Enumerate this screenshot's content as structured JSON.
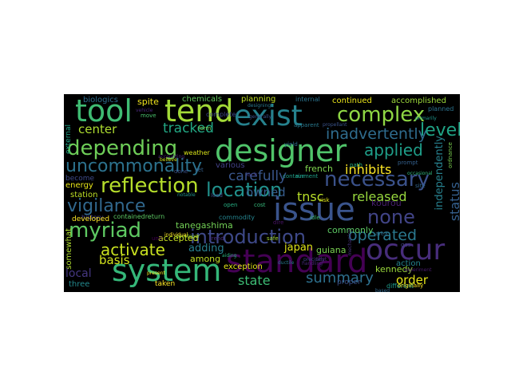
{
  "figure": {
    "background": "#000000",
    "page_background": "#ffffff"
  },
  "words": [
    {
      "text": "tool",
      "color": "#3fbc73"
    },
    {
      "text": "tend",
      "color": "#a2da37"
    },
    {
      "text": "exist",
      "color": "#26828e"
    },
    {
      "text": "complex",
      "color": "#8fd744"
    },
    {
      "text": "designer",
      "color": "#50c46a"
    },
    {
      "text": "issue",
      "color": "#3a548c"
    },
    {
      "text": "standard",
      "color": "#440154"
    },
    {
      "text": "system",
      "color": "#35b779"
    },
    {
      "text": "occur",
      "color": "#472d7b"
    },
    {
      "text": "depending",
      "color": "#6ece58"
    },
    {
      "text": "reflection",
      "color": "#b5de2b"
    },
    {
      "text": "uncommonality",
      "color": "#2c728e"
    },
    {
      "text": "necessary",
      "color": "#3b528b"
    },
    {
      "text": "location",
      "color": "#21918c"
    },
    {
      "text": "introduction",
      "color": "#3e4989"
    },
    {
      "text": "myriad",
      "color": "#5ec962"
    },
    {
      "text": "vigilance",
      "color": "#31688e"
    },
    {
      "text": "activate",
      "color": "#c8e020"
    },
    {
      "text": "none",
      "color": "#414487"
    },
    {
      "text": "operated",
      "color": "#2a788e"
    },
    {
      "text": "applied",
      "color": "#1f9e89"
    },
    {
      "text": "level",
      "color": "#20a486"
    },
    {
      "text": "inadvertently",
      "color": "#2f6c8e"
    },
    {
      "text": "tracked",
      "color": "#22a884"
    },
    {
      "text": "center",
      "color": "#addc30"
    },
    {
      "text": "carefully",
      "color": "#39568c"
    },
    {
      "text": "owned",
      "color": "#365d8d"
    },
    {
      "text": "inhibits",
      "color": "#fde725"
    },
    {
      "text": "released",
      "color": "#98d83e"
    },
    {
      "text": "tnsc",
      "color": "#b8de29"
    },
    {
      "text": "summary",
      "color": "#2d708e"
    },
    {
      "text": "state",
      "color": "#3dbc74"
    },
    {
      "text": "order",
      "color": "#e5e419"
    },
    {
      "text": "status",
      "color": "#355f8d"
    },
    {
      "text": "independently",
      "color": "#27808e"
    },
    {
      "text": "japan",
      "color": "#dde318"
    },
    {
      "text": "basis",
      "color": "#d2e21b"
    },
    {
      "text": "adding",
      "color": "#277f8e"
    },
    {
      "text": "tanegashima",
      "color": "#73d056"
    },
    {
      "text": "local",
      "color": "#453781"
    },
    {
      "text": "kourou",
      "color": "#481f70"
    },
    {
      "text": "guiana",
      "color": "#7ad151"
    },
    {
      "text": "kennedy",
      "color": "#9bd93c"
    },
    {
      "text": "french",
      "color": "#7fd34e"
    },
    {
      "text": "energy",
      "color": "#e7e419"
    },
    {
      "text": "station",
      "color": "#bddf26"
    },
    {
      "text": "developed",
      "color": "#fde725"
    },
    {
      "text": "somewhat",
      "color": "#b0dd2f"
    },
    {
      "text": "three",
      "color": "#23898e"
    },
    {
      "text": "taken",
      "color": "#fde725"
    },
    {
      "text": "among",
      "color": "#c2df23"
    },
    {
      "text": "accepted",
      "color": "#c5e021"
    },
    {
      "text": "commonly",
      "color": "#5cc863"
    },
    {
      "text": "biologics",
      "color": "#2e6e8e"
    },
    {
      "text": "spite",
      "color": "#f1e51d"
    },
    {
      "text": "chemicals",
      "color": "#63cb5f"
    },
    {
      "text": "planning",
      "color": "#c0df25"
    },
    {
      "text": "internal",
      "color": "#2b748e"
    },
    {
      "text": "continued",
      "color": "#eae51a"
    },
    {
      "text": "accomplished",
      "color": "#9dd93b"
    },
    {
      "text": "exception",
      "color": "#e2e418"
    },
    {
      "text": "external",
      "color": "#1fa287"
    },
    {
      "text": "various",
      "color": "#424186"
    },
    {
      "text": "become",
      "color": "#3e4a89"
    },
    {
      "text": "weather",
      "color": "#d8e219"
    },
    {
      "text": "history",
      "color": "#433e85"
    },
    {
      "text": "action",
      "color": "#25848e"
    },
    {
      "text": "proper",
      "color": "#3c4f8a"
    },
    {
      "text": "different",
      "color": "#1e9b8a"
    },
    {
      "text": "planned",
      "color": "#2c738e"
    },
    {
      "text": "handling",
      "color": "#482677"
    },
    {
      "text": "containedreturn",
      "color": "#5cc863"
    },
    {
      "text": "commodity",
      "color": "#25848e"
    },
    {
      "text": "experiment",
      "color": "#481a6c"
    },
    {
      "text": "originally",
      "color": "#fde725"
    },
    {
      "text": "based",
      "color": "#31688e"
    },
    {
      "text": "prompt",
      "color": "#34608d"
    },
    {
      "text": "generally",
      "color": "#3b528b"
    },
    {
      "text": "designing",
      "color": "#2a788e"
    },
    {
      "text": "developer",
      "color": "#90d743"
    },
    {
      "text": "complete",
      "color": "#3f4788"
    },
    {
      "text": "apparent",
      "color": "#29798e"
    },
    {
      "text": "mechanical",
      "color": "#46327e"
    },
    {
      "text": "primarily",
      "color": "#1f968b"
    },
    {
      "text": "precisely",
      "color": "#404688"
    },
    {
      "text": "ductile",
      "color": "#297b8e"
    },
    {
      "text": "accounting",
      "color": "#482475"
    },
    {
      "text": "aiding",
      "color": "#2ab07f"
    },
    {
      "text": "notable",
      "color": "#20928c"
    },
    {
      "text": "vehicle",
      "color": "#482878"
    },
    {
      "text": "individual",
      "color": "#fde725"
    },
    {
      "text": "believe",
      "color": "#d0e11c"
    },
    {
      "text": "present",
      "color": "#f4e61e"
    },
    {
      "text": "occasional",
      "color": "#31b57b"
    },
    {
      "text": "ordnance",
      "color": "#7cd250"
    },
    {
      "text": "propellant",
      "color": "#3a548c"
    },
    {
      "text": "containment",
      "color": "#1f9f88"
    },
    {
      "text": "dire",
      "color": "#481467"
    },
    {
      "text": "cost",
      "color": "#35b779"
    },
    {
      "text": "safe",
      "color": "#a5db36"
    },
    {
      "text": "open",
      "color": "#26ad81"
    },
    {
      "text": "unit",
      "color": "#440154"
    },
    {
      "text": "trend",
      "color": "#472f7d"
    },
    {
      "text": "idle",
      "color": "#3fbc73"
    },
    {
      "text": "site",
      "color": "#32658e"
    },
    {
      "text": "yield",
      "color": "#2d718e"
    },
    {
      "text": "risk",
      "color": "#e2e418"
    },
    {
      "text": "gas",
      "color": "#414287"
    },
    {
      "text": "set",
      "color": "#34618d"
    },
    {
      "text": "lack",
      "color": "#443983"
    },
    {
      "text": "done",
      "color": "#3b518b"
    },
    {
      "text": "move",
      "color": "#4ac16d"
    },
    {
      "text": "form",
      "color": "#7ad151"
    },
    {
      "text": "run",
      "color": "#1f9a8a"
    },
    {
      "text": "test",
      "color": "#482071"
    },
    {
      "text": "area",
      "color": "#2e6f8e"
    },
    {
      "text": "load",
      "color": "#3d4d8a"
    },
    {
      "text": "path",
      "color": "#25ac82"
    }
  ]
}
